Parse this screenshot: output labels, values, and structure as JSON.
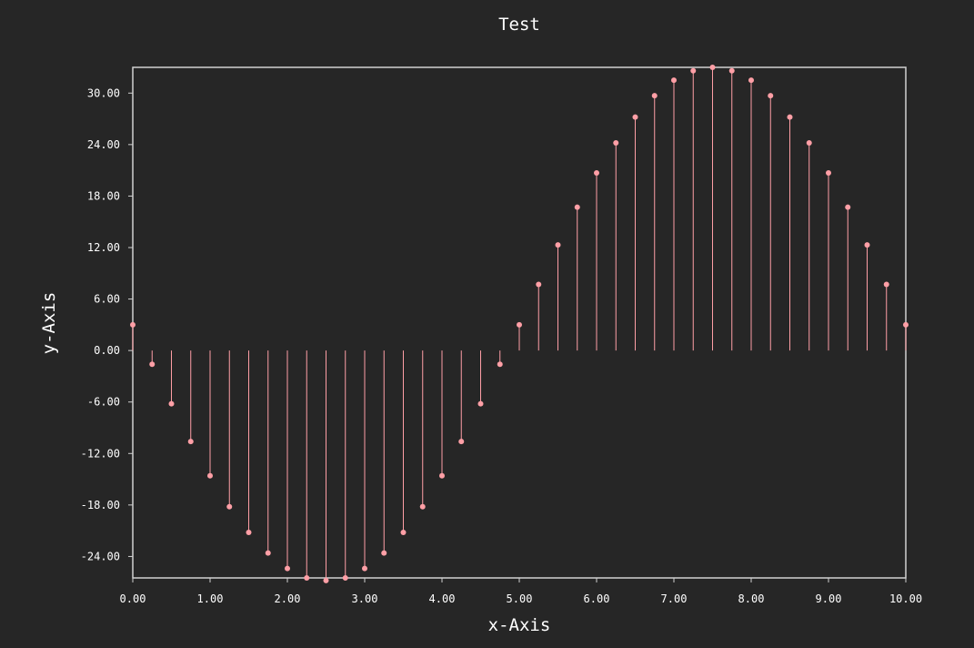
{
  "chart_data": {
    "type": "stem",
    "title": "Test",
    "xlabel": "x-Axis",
    "ylabel": "y-Axis",
    "xlim": [
      0,
      10
    ],
    "ylim": [
      -26.5,
      33.0
    ],
    "grid": false,
    "x_ticks": [
      "0.00",
      "1.00",
      "2.00",
      "3.00",
      "4.00",
      "5.00",
      "6.00",
      "7.00",
      "8.00",
      "9.00",
      "10.00"
    ],
    "y_ticks": [
      "-24.00",
      "-18.00",
      "-12.00",
      "-6.00",
      "0.00",
      "6.00",
      "12.00",
      "18.00",
      "24.00",
      "30.00"
    ],
    "colors": {
      "background": "#262626",
      "axes": "#d0d0d0",
      "series": "#ff9fa6"
    },
    "series": [
      {
        "x": [
          0,
          0.25,
          0.5,
          0.75,
          1.0,
          1.25,
          1.5,
          1.75,
          2.0,
          2.25,
          2.5,
          2.75,
          3.0,
          3.25,
          3.5,
          3.75,
          4.0,
          4.25,
          4.5,
          4.75,
          5.0,
          5.25,
          5.5,
          5.75,
          6.0,
          6.25,
          6.5,
          6.75,
          7.0,
          7.25,
          7.5,
          7.75,
          8.0,
          8.25,
          8.5,
          8.75,
          9.0,
          9.25,
          9.5,
          9.75,
          10.0
        ],
        "values": [
          3.0,
          -1.6,
          -6.2,
          -10.6,
          -14.6,
          -18.2,
          -21.2,
          -23.6,
          -25.4,
          -26.5,
          -26.8,
          -26.5,
          -25.4,
          -23.6,
          -21.2,
          -18.2,
          -14.6,
          -10.6,
          -6.2,
          -1.6,
          3.0,
          7.7,
          12.3,
          16.7,
          20.7,
          24.2,
          27.2,
          29.7,
          31.5,
          32.6,
          33.0,
          32.6,
          31.5,
          29.7,
          27.2,
          24.2,
          20.7,
          16.7,
          12.3,
          7.7,
          3.0
        ]
      }
    ]
  }
}
